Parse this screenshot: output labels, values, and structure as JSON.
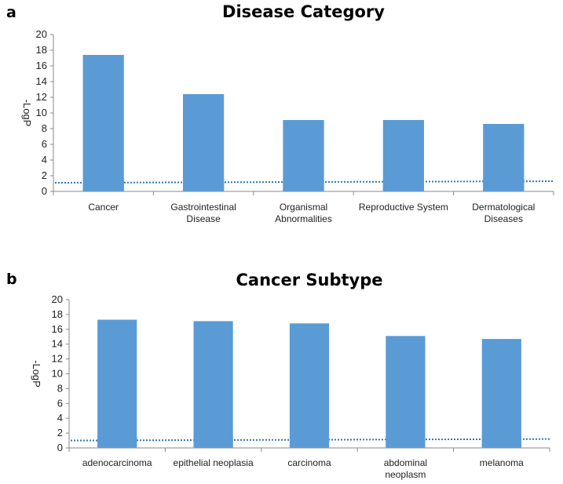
{
  "chart_data": [
    {
      "type": "bar",
      "panel": "a",
      "title": "Disease Category",
      "ylabel": "-LogP",
      "xlabel": "",
      "ylim": [
        0,
        20
      ],
      "yticks": [
        0,
        2,
        4,
        6,
        8,
        10,
        12,
        14,
        16,
        18,
        20
      ],
      "categories": [
        "Cancer",
        "Gastrointestinal Disease",
        "Organismal Abnormalities",
        "Reproductive System",
        "Dermatological Diseases"
      ],
      "category_lines": [
        [
          "Cancer"
        ],
        [
          "Gastrointestinal",
          "Disease"
        ],
        [
          "Organismal",
          "Abnormalities"
        ],
        [
          "Reproductive System"
        ],
        [
          "Dermatological",
          "Diseases"
        ]
      ],
      "values": [
        17.4,
        12.4,
        9.1,
        9.1,
        8.6
      ],
      "threshold": 1.2,
      "bar_color": "#5b9bd5",
      "grid": false
    },
    {
      "type": "bar",
      "panel": "b",
      "title": "Cancer Subtype",
      "ylabel": "-LogP",
      "xlabel": "",
      "ylim": [
        0,
        20
      ],
      "yticks": [
        0,
        2,
        4,
        6,
        8,
        10,
        12,
        14,
        16,
        18,
        20
      ],
      "categories": [
        "adenocarcinoma",
        "epithelial neoplasia",
        "carcinoma",
        "abdominal neoplasm",
        "melanoma"
      ],
      "category_lines": [
        [
          "adenocarcinoma"
        ],
        [
          "epithelial neoplasia"
        ],
        [
          "carcinoma"
        ],
        [
          "abdominal",
          "neoplasm"
        ],
        [
          "melanoma"
        ]
      ],
      "values": [
        17.3,
        17.1,
        16.8,
        15.1,
        14.7
      ],
      "threshold": 1.1,
      "bar_color": "#5b9bd5",
      "grid": false
    }
  ]
}
